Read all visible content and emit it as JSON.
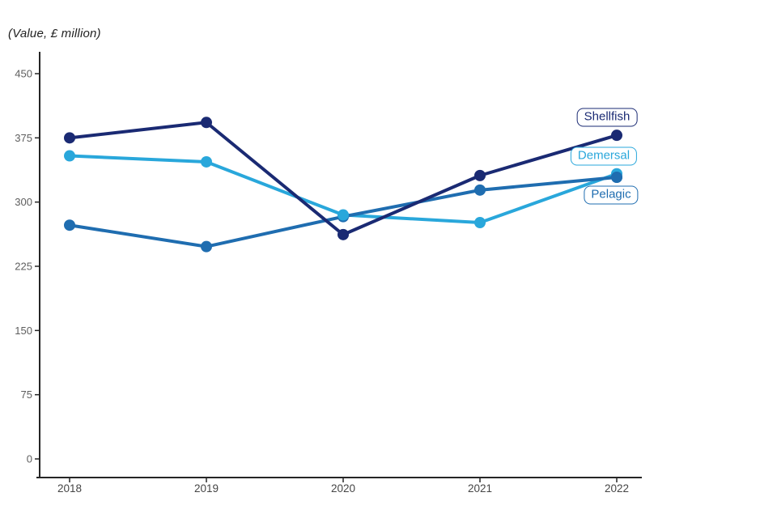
{
  "title": "(Value, £ million)",
  "chart_data": {
    "type": "line",
    "x": [
      2018,
      2019,
      2020,
      2021,
      2022
    ],
    "series": [
      {
        "name": "Demersal",
        "values": [
          354,
          347,
          285,
          276,
          333
        ],
        "color": "#29a7db"
      },
      {
        "name": "Pelagic",
        "values": [
          273,
          248,
          283,
          314,
          329
        ],
        "color": "#1f6db0"
      },
      {
        "name": "Shellfish",
        "values": [
          375,
          393,
          262,
          331,
          378
        ],
        "color": "#1a2a73"
      }
    ],
    "title": "(Value, £ million)",
    "xlabel": "",
    "ylabel": "Value, £ million",
    "ylim": [
      0,
      450
    ],
    "yticks": [
      0,
      75,
      150,
      225,
      300,
      375,
      450
    ],
    "x_tick_labels": [
      "2018",
      "2019",
      "2020",
      "2021",
      "2022"
    ],
    "y_tick_labels": [
      "0",
      "75",
      "150",
      "225",
      "300",
      "375",
      "450"
    ],
    "grid": false,
    "legend": "direct-labels-at-line-ends"
  },
  "labels": {
    "shellfish": "Shellfish",
    "demersal": "Demersal",
    "pelagic": "Pelagic"
  },
  "colors": {
    "shellfish": "#1a2a73",
    "demersal": "#29a7db",
    "pelagic": "#1f6db0",
    "axis_line": "#262626",
    "y_tick_label": "#5e5e5e",
    "x_tick_label": "#454545",
    "background": "#ffffff"
  }
}
